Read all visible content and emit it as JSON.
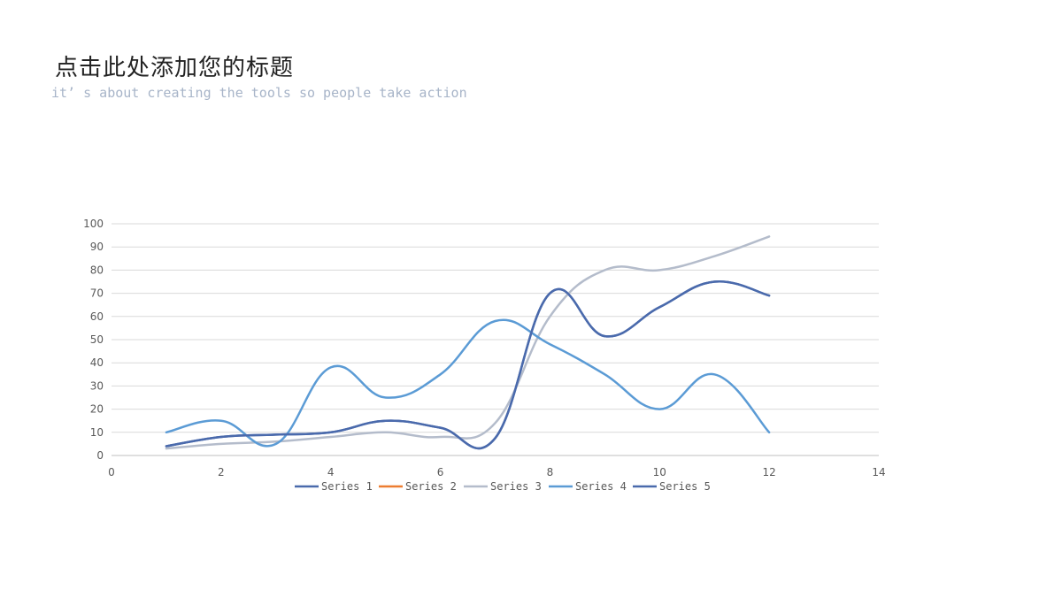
{
  "slide": {
    "title": "点击此处添加您的标题",
    "subtitle": "it’ s about creating the tools so people take action"
  },
  "chart_data": {
    "type": "line",
    "smooth": true,
    "xlim": [
      0,
      14
    ],
    "ylim": [
      0,
      100
    ],
    "x_ticks": [
      0,
      2,
      4,
      6,
      8,
      10,
      12,
      14
    ],
    "y_ticks": [
      0,
      10,
      20,
      30,
      40,
      50,
      60,
      70,
      80,
      90,
      100
    ],
    "grid": "horizontal",
    "legend_position": "bottom",
    "series": [
      {
        "name": "Series 1",
        "color": "#4a6aac",
        "x": [
          1,
          2,
          3,
          4,
          5,
          6,
          7,
          8,
          9,
          10,
          11,
          12
        ],
        "y": [
          4,
          8,
          9,
          10,
          15,
          12,
          7.5,
          70,
          51.5,
          64,
          75,
          69
        ]
      },
      {
        "name": "Series 2",
        "color": "#ed7d31",
        "x": [],
        "y": []
      },
      {
        "name": "Series 3",
        "color": "#b4bccb",
        "x": [
          1,
          2,
          3,
          4,
          5,
          6,
          7,
          8,
          9,
          10,
          11,
          12
        ],
        "y": [
          3,
          5,
          6,
          8,
          10,
          8,
          14,
          60,
          80,
          80,
          86,
          94.5
        ]
      },
      {
        "name": "Series 4",
        "color": "#5b9bd5",
        "x": [
          1,
          2,
          3,
          4,
          5,
          6,
          7,
          8,
          9,
          10,
          11,
          12
        ],
        "y": [
          10,
          15,
          5,
          38,
          25,
          35,
          58,
          48,
          35,
          20,
          35,
          10
        ]
      },
      {
        "name": "Series 5",
        "color": "#4a6aac",
        "x": [
          1,
          2,
          3,
          4,
          5,
          6,
          7,
          8,
          9,
          10,
          11,
          12
        ],
        "y": [
          4,
          8,
          9,
          10,
          15,
          12,
          7.5,
          70,
          51.5,
          64,
          75,
          69
        ]
      }
    ]
  }
}
